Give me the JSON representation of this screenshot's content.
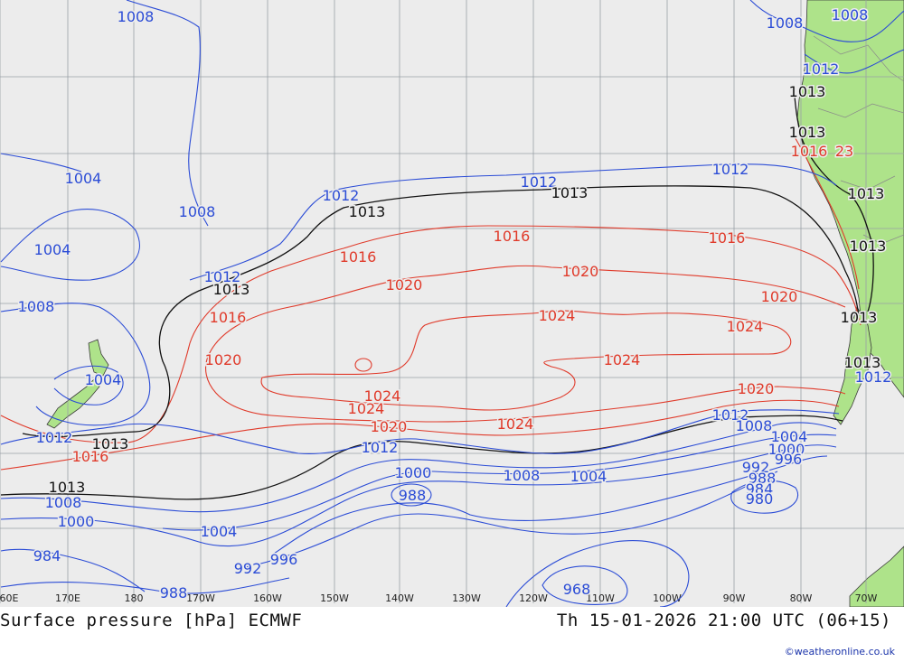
{
  "footer": {
    "title": "Surface pressure [hPa] ECMWF",
    "valid_time": "Th 15-01-2026 21:00 UTC (06+15)",
    "credit": "©weatheronline.co.uk"
  },
  "colors": {
    "ocean": "#ececec",
    "land": "#aee38a",
    "grid": "#9aa0a6",
    "low_isobar": "#2b4cd6",
    "high_isobar": "#e03a2a",
    "standard_isobar": "#111111"
  },
  "longitude_ticks": [
    "60E",
    "170E",
    "180",
    "170W",
    "160W",
    "150W",
    "140W",
    "130W",
    "120W",
    "110W",
    "100W",
    "90W",
    "80W",
    "70W"
  ],
  "pressure_labels": [
    {
      "text": "1008",
      "color": "low"
    },
    {
      "text": "1008",
      "color": "low"
    },
    {
      "text": "1008",
      "color": "low"
    },
    {
      "text": "1012",
      "color": "low"
    },
    {
      "text": "1013",
      "color": "std"
    },
    {
      "text": "1013",
      "color": "std"
    },
    {
      "text": "1016",
      "color": "high"
    },
    {
      "text": "23",
      "color": "high"
    },
    {
      "text": "1004",
      "color": "low"
    },
    {
      "text": "1008",
      "color": "low"
    },
    {
      "text": "1012",
      "color": "low"
    },
    {
      "text": "1013",
      "color": "std"
    },
    {
      "text": "1012",
      "color": "low"
    },
    {
      "text": "1013",
      "color": "std"
    },
    {
      "text": "1012",
      "color": "low"
    },
    {
      "text": "1013",
      "color": "std"
    },
    {
      "text": "1004",
      "color": "low"
    },
    {
      "text": "1016",
      "color": "high"
    },
    {
      "text": "1016",
      "color": "high"
    },
    {
      "text": "1016",
      "color": "high"
    },
    {
      "text": "1013",
      "color": "std"
    },
    {
      "text": "1012",
      "color": "low"
    },
    {
      "text": "1013",
      "color": "std"
    },
    {
      "text": "1020",
      "color": "high"
    },
    {
      "text": "1020",
      "color": "high"
    },
    {
      "text": "1020",
      "color": "high"
    },
    {
      "text": "1008",
      "color": "low"
    },
    {
      "text": "1016",
      "color": "high"
    },
    {
      "text": "1024",
      "color": "high"
    },
    {
      "text": "1024",
      "color": "high"
    },
    {
      "text": "1013",
      "color": "std"
    },
    {
      "text": "1020",
      "color": "high"
    },
    {
      "text": "1024",
      "color": "high"
    },
    {
      "text": "1013",
      "color": "std"
    },
    {
      "text": "1012",
      "color": "low"
    },
    {
      "text": "1004",
      "color": "low"
    },
    {
      "text": "1024",
      "color": "high"
    },
    {
      "text": "1024",
      "color": "high"
    },
    {
      "text": "1020",
      "color": "high"
    },
    {
      "text": "1012",
      "color": "low"
    },
    {
      "text": "1008",
      "color": "low"
    },
    {
      "text": "1024",
      "color": "high"
    },
    {
      "text": "1012",
      "color": "low"
    },
    {
      "text": "1020",
      "color": "high"
    },
    {
      "text": "1013",
      "color": "std"
    },
    {
      "text": "1004",
      "color": "low"
    },
    {
      "text": "1000",
      "color": "low"
    },
    {
      "text": "1016",
      "color": "high"
    },
    {
      "text": "1012",
      "color": "low"
    },
    {
      "text": "996",
      "color": "low"
    },
    {
      "text": "1000",
      "color": "low"
    },
    {
      "text": "1008",
      "color": "low"
    },
    {
      "text": "1004",
      "color": "low"
    },
    {
      "text": "992",
      "color": "low"
    },
    {
      "text": "988",
      "color": "low"
    },
    {
      "text": "984",
      "color": "low"
    },
    {
      "text": "980",
      "color": "low"
    },
    {
      "text": "1013",
      "color": "std"
    },
    {
      "text": "988",
      "color": "low"
    },
    {
      "text": "1008",
      "color": "low"
    },
    {
      "text": "1000",
      "color": "low"
    },
    {
      "text": "1004",
      "color": "low"
    },
    {
      "text": "996",
      "color": "low"
    },
    {
      "text": "984",
      "color": "low"
    },
    {
      "text": "992",
      "color": "low"
    },
    {
      "text": "968",
      "color": "low"
    },
    {
      "text": "988",
      "color": "low"
    }
  ]
}
